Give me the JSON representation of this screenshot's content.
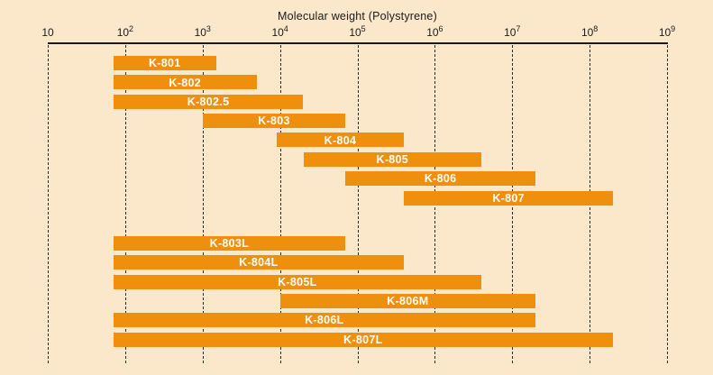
{
  "page": {
    "background_color": "#FBE7CA",
    "text_color": "#1A1A1A"
  },
  "chart_data": {
    "type": "bar",
    "subtype": "horizontal-log-range",
    "title": "Molecular weight (Polystyrene)",
    "bar_color": "#EE8F0E",
    "bar_label_color": "#FFFFFF",
    "x_axis": {
      "scale": "log10",
      "position": "top",
      "range": [
        10,
        1000000000
      ],
      "tick_exponents": [
        1,
        2,
        3,
        4,
        5,
        6,
        7,
        8,
        9
      ],
      "tick_base": "10",
      "gridlines": "dashed-vertical"
    },
    "legend": "none",
    "groups": [
      {
        "name": "upper-group",
        "bars": [
          {
            "label": "K-801",
            "mw_min": 70,
            "mw_max": 1500
          },
          {
            "label": "K-802",
            "mw_min": 70,
            "mw_max": 5000
          },
          {
            "label": "K-802.5",
            "mw_min": 70,
            "mw_max": 20000
          },
          {
            "label": "K-803",
            "mw_min": 1000,
            "mw_max": 70000
          },
          {
            "label": "K-804",
            "mw_min": 9000,
            "mw_max": 400000
          },
          {
            "label": "K-805",
            "mw_min": 20000,
            "mw_max": 4000000
          },
          {
            "label": "K-806",
            "mw_min": 70000,
            "mw_max": 20000000
          },
          {
            "label": "K-807",
            "mw_min": 400000,
            "mw_max": 200000000
          }
        ]
      },
      {
        "name": "lower-group",
        "bars": [
          {
            "label": "K-803L",
            "mw_min": 70,
            "mw_max": 70000
          },
          {
            "label": "K-804L",
            "mw_min": 70,
            "mw_max": 400000
          },
          {
            "label": "K-805L",
            "mw_min": 70,
            "mw_max": 4000000
          },
          {
            "label": "K-806M",
            "mw_min": 10000,
            "mw_max": 20000000
          },
          {
            "label": "K-806L",
            "mw_min": 70,
            "mw_max": 20000000
          },
          {
            "label": "K-807L",
            "mw_min": 70,
            "mw_max": 200000000
          }
        ]
      }
    ]
  }
}
